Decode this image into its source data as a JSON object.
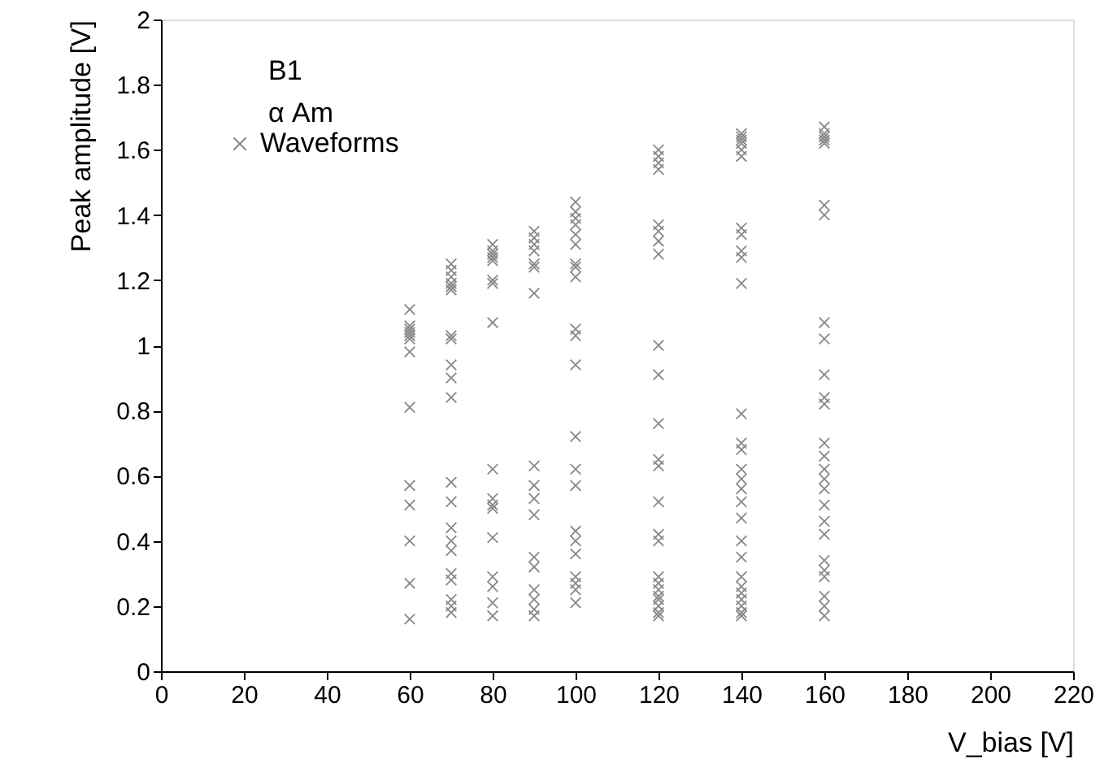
{
  "chart_data": {
    "type": "scatter",
    "xlabel": "V_bias [V]",
    "ylabel": "Peak amplitude [V]",
    "annotations": [
      "B1",
      "α Am"
    ],
    "legend": "top left",
    "marker": "cross",
    "grid": false,
    "xlim": [
      0,
      220
    ],
    "xticks": [
      0,
      20,
      40,
      60,
      80,
      100,
      120,
      140,
      160,
      180,
      200,
      220
    ],
    "ylim": [
      0,
      2
    ],
    "yticks": [
      0,
      0.2,
      0.4,
      0.6,
      0.8,
      1,
      1.2,
      1.4,
      1.6,
      1.8,
      2
    ],
    "series": [
      {
        "name": "Waveforms",
        "color": "#888888",
        "x": [
          60,
          60,
          60,
          60,
          60,
          60,
          60,
          60,
          60,
          60,
          60,
          60,
          60,
          70,
          70,
          70,
          70,
          70,
          70,
          70,
          70,
          70,
          70,
          70,
          70,
          70,
          70,
          70,
          70,
          70,
          70,
          70,
          70,
          70,
          80,
          80,
          80,
          80,
          80,
          80,
          80,
          80,
          80,
          80,
          80,
          80,
          80,
          80,
          80,
          80,
          80,
          90,
          90,
          90,
          90,
          90,
          90,
          90,
          90,
          90,
          90,
          90,
          90,
          90,
          90,
          90,
          90,
          90,
          100,
          100,
          100,
          100,
          100,
          100,
          100,
          100,
          100,
          100,
          100,
          100,
          100,
          100,
          100,
          100,
          100,
          100,
          100,
          100,
          100,
          100,
          120,
          120,
          120,
          120,
          120,
          120,
          120,
          120,
          120,
          120,
          120,
          120,
          120,
          120,
          120,
          120,
          120,
          120,
          120,
          120,
          120,
          120,
          120,
          120,
          140,
          140,
          140,
          140,
          140,
          140,
          140,
          140,
          140,
          140,
          140,
          140,
          140,
          140,
          140,
          140,
          140,
          140,
          140,
          140,
          140,
          140,
          140,
          140,
          140,
          140,
          140,
          140,
          160,
          160,
          160,
          160,
          160,
          160,
          160,
          160,
          160,
          160,
          160,
          160,
          160,
          160,
          160,
          160,
          160,
          160,
          160,
          160,
          160,
          160,
          160,
          160,
          160,
          160
        ],
        "values": [
          1.11,
          1.06,
          1.05,
          1.04,
          1.03,
          1.02,
          0.98,
          0.81,
          0.57,
          0.51,
          0.4,
          0.27,
          0.16,
          1.25,
          1.23,
          1.21,
          1.19,
          1.18,
          1.17,
          1.03,
          1.02,
          0.94,
          0.9,
          0.84,
          0.58,
          0.52,
          0.44,
          0.4,
          0.37,
          0.3,
          0.28,
          0.22,
          0.2,
          0.18,
          1.31,
          1.29,
          1.28,
          1.27,
          1.26,
          1.2,
          1.19,
          1.07,
          0.62,
          0.53,
          0.51,
          0.5,
          0.41,
          0.29,
          0.26,
          0.21,
          0.17,
          1.35,
          1.33,
          1.31,
          1.29,
          1.25,
          1.24,
          1.16,
          0.63,
          0.57,
          0.53,
          0.48,
          0.35,
          0.32,
          0.25,
          0.22,
          0.19,
          0.17,
          1.44,
          1.41,
          1.39,
          1.37,
          1.34,
          1.31,
          1.25,
          1.24,
          1.21,
          1.05,
          1.03,
          0.94,
          0.72,
          0.62,
          0.57,
          0.43,
          0.4,
          0.36,
          0.29,
          0.27,
          0.25,
          0.21,
          1.6,
          1.58,
          1.56,
          1.54,
          1.37,
          1.35,
          1.32,
          1.28,
          1.0,
          0.91,
          0.76,
          0.65,
          0.63,
          0.52,
          0.42,
          0.4,
          0.29,
          0.27,
          0.25,
          0.23,
          0.22,
          0.2,
          0.18,
          0.17,
          1.65,
          1.64,
          1.63,
          1.62,
          1.6,
          1.58,
          1.36,
          1.34,
          1.29,
          1.27,
          1.19,
          0.79,
          0.7,
          0.68,
          0.62,
          0.59,
          0.56,
          0.52,
          0.47,
          0.4,
          0.35,
          0.29,
          0.26,
          0.24,
          0.22,
          0.2,
          0.18,
          0.17,
          1.67,
          1.65,
          1.64,
          1.63,
          1.62,
          1.43,
          1.4,
          1.07,
          1.02,
          0.91,
          0.84,
          0.82,
          0.7,
          0.66,
          0.62,
          0.59,
          0.56,
          0.51,
          0.46,
          0.42,
          0.34,
          0.31,
          0.29,
          0.23,
          0.2,
          0.17
        ]
      }
    ]
  }
}
